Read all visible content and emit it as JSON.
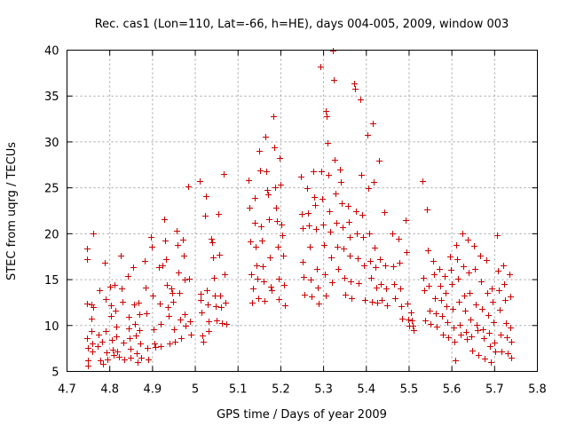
{
  "chart_data": {
    "type": "scatter",
    "title": "Rec. cas1 (Lon=110, Lat=-66, h=HE), days 004-005, 2009, window 003",
    "xlabel": "GPS time / Days of year 2009",
    "ylabel": "STEC from uqrg / TECUs",
    "xlim": [
      4.7,
      5.8
    ],
    "ylim": [
      5,
      40
    ],
    "xticks": [
      "4.7",
      "4.8",
      "4.9",
      "5",
      "5.1",
      "5.2",
      "5.3",
      "5.4",
      "5.5",
      "5.6",
      "5.7",
      "5.8"
    ],
    "yticks": [
      "5",
      "10",
      "15",
      "20",
      "25",
      "30",
      "35",
      "40"
    ],
    "grid": true,
    "marker": "plus",
    "color": "#cc0000",
    "points": [
      [
        4.746,
        18.4
      ],
      [
        4.746,
        17.2
      ],
      [
        4.747,
        12.4
      ],
      [
        4.747,
        8.6
      ],
      [
        4.748,
        7.6
      ],
      [
        4.748,
        6.2
      ],
      [
        4.748,
        5.6
      ],
      [
        4.757,
        12.3
      ],
      [
        4.758,
        10.8
      ],
      [
        4.758,
        9.4
      ],
      [
        4.759,
        8.0
      ],
      [
        4.759,
        7.2
      ],
      [
        4.761,
        20.0
      ],
      [
        4.762,
        12.0
      ],
      [
        4.772,
        7.8
      ],
      [
        4.774,
        9.0
      ],
      [
        4.776,
        13.8
      ],
      [
        4.778,
        6.2
      ],
      [
        4.781,
        8.2
      ],
      [
        4.784,
        5.8
      ],
      [
        4.789,
        16.8
      ],
      [
        4.79,
        12.9
      ],
      [
        4.791,
        9.4
      ],
      [
        4.792,
        7.1
      ],
      [
        4.794,
        6.3
      ],
      [
        4.8,
        14.2
      ],
      [
        4.802,
        12.2
      ],
      [
        4.803,
        11.0
      ],
      [
        4.804,
        8.4
      ],
      [
        4.806,
        7.4
      ],
      [
        4.808,
        6.8
      ],
      [
        4.812,
        14.4
      ],
      [
        4.814,
        11.6
      ],
      [
        4.815,
        9.9
      ],
      [
        4.816,
        8.8
      ],
      [
        4.818,
        7.2
      ],
      [
        4.821,
        6.6
      ],
      [
        4.826,
        17.6
      ],
      [
        4.828,
        14.0
      ],
      [
        4.83,
        12.6
      ],
      [
        4.832,
        8.1
      ],
      [
        4.834,
        6.3
      ],
      [
        4.842,
        15.4
      ],
      [
        4.844,
        10.9
      ],
      [
        4.845,
        9.7
      ],
      [
        4.846,
        8.6
      ],
      [
        4.848,
        7.5
      ],
      [
        4.849,
        6.5
      ],
      [
        4.854,
        16.4
      ],
      [
        4.856,
        12.3
      ],
      [
        4.858,
        10.2
      ],
      [
        4.86,
        8.9
      ],
      [
        4.862,
        7.0
      ],
      [
        4.864,
        6.0
      ],
      [
        4.867,
        12.5
      ],
      [
        4.869,
        11.2
      ],
      [
        4.87,
        9.5
      ],
      [
        4.872,
        8.0
      ],
      [
        4.874,
        6.5
      ],
      [
        4.882,
        17.0
      ],
      [
        4.884,
        14.1
      ],
      [
        4.886,
        11.3
      ],
      [
        4.888,
        7.6
      ],
      [
        4.89,
        6.3
      ],
      [
        4.896,
        19.6
      ],
      [
        4.898,
        18.6
      ],
      [
        4.9,
        13.3
      ],
      [
        4.902,
        9.6
      ],
      [
        4.904,
        8.0
      ],
      [
        4.906,
        7.7
      ],
      [
        4.914,
        16.4
      ],
      [
        4.916,
        12.4
      ],
      [
        4.918,
        10.2
      ],
      [
        4.92,
        7.8
      ],
      [
        4.923,
        16.6
      ],
      [
        4.928,
        21.6
      ],
      [
        4.93,
        19.3
      ],
      [
        4.932,
        17.2
      ],
      [
        4.934,
        14.4
      ],
      [
        4.936,
        12.0
      ],
      [
        4.938,
        11.0
      ],
      [
        4.94,
        8.0
      ],
      [
        4.944,
        14.0
      ],
      [
        4.946,
        13.6
      ],
      [
        4.948,
        12.6
      ],
      [
        4.95,
        9.6
      ],
      [
        4.952,
        8.2
      ],
      [
        4.956,
        20.3
      ],
      [
        4.958,
        18.8
      ],
      [
        4.96,
        15.8
      ],
      [
        4.962,
        13.6
      ],
      [
        4.964,
        10.7
      ],
      [
        4.966,
        8.6
      ],
      [
        4.97,
        19.4
      ],
      [
        4.972,
        17.6
      ],
      [
        4.974,
        15.0
      ],
      [
        4.976,
        11.2
      ],
      [
        4.978,
        10.0
      ],
      [
        4.984,
        25.2
      ],
      [
        4.986,
        15.1
      ],
      [
        4.988,
        10.5
      ],
      [
        4.99,
        9.0
      ],
      [
        5.01,
        25.7
      ],
      [
        5.012,
        13.5
      ],
      [
        5.013,
        12.8
      ],
      [
        5.014,
        11.4
      ],
      [
        5.016,
        8.9
      ],
      [
        5.018,
        8.2
      ],
      [
        5.022,
        22.0
      ],
      [
        5.024,
        24.1
      ],
      [
        5.026,
        13.8
      ],
      [
        5.028,
        12.3
      ],
      [
        5.03,
        10.5
      ],
      [
        5.032,
        9.4
      ],
      [
        5.038,
        19.5
      ],
      [
        5.04,
        19.1
      ],
      [
        5.042,
        17.4
      ],
      [
        5.044,
        15.2
      ],
      [
        5.046,
        13.3
      ],
      [
        5.048,
        12.1
      ],
      [
        5.05,
        10.6
      ],
      [
        5.054,
        22.2
      ],
      [
        5.056,
        17.7
      ],
      [
        5.058,
        13.3
      ],
      [
        5.06,
        12.0
      ],
      [
        5.062,
        10.3
      ],
      [
        5.066,
        26.5
      ],
      [
        5.068,
        15.6
      ],
      [
        5.07,
        12.5
      ],
      [
        5.072,
        10.2
      ],
      [
        5.124,
        25.8
      ],
      [
        5.126,
        22.8
      ],
      [
        5.128,
        19.2
      ],
      [
        5.13,
        15.6
      ],
      [
        5.132,
        12.5
      ],
      [
        5.134,
        14.0
      ],
      [
        5.138,
        23.9
      ],
      [
        5.14,
        21.2
      ],
      [
        5.142,
        18.6
      ],
      [
        5.144,
        16.6
      ],
      [
        5.146,
        15.1
      ],
      [
        5.148,
        13.0
      ],
      [
        5.15,
        29.0
      ],
      [
        5.152,
        26.9
      ],
      [
        5.154,
        20.8
      ],
      [
        5.156,
        19.3
      ],
      [
        5.158,
        16.5
      ],
      [
        5.16,
        14.8
      ],
      [
        5.162,
        12.7
      ],
      [
        5.164,
        30.6
      ],
      [
        5.166,
        26.8
      ],
      [
        5.168,
        24.8
      ],
      [
        5.17,
        24.3
      ],
      [
        5.172,
        21.6
      ],
      [
        5.174,
        17.4
      ],
      [
        5.176,
        14.2
      ],
      [
        5.178,
        13.8
      ],
      [
        5.182,
        32.8
      ],
      [
        5.184,
        29.4
      ],
      [
        5.186,
        25.1
      ],
      [
        5.188,
        22.8
      ],
      [
        5.19,
        21.4
      ],
      [
        5.192,
        18.6
      ],
      [
        5.194,
        15.1
      ],
      [
        5.196,
        12.9
      ],
      [
        5.198,
        28.3
      ],
      [
        5.2,
        25.4
      ],
      [
        5.202,
        21.0
      ],
      [
        5.204,
        19.8
      ],
      [
        5.206,
        17.6
      ],
      [
        5.208,
        14.4
      ],
      [
        5.21,
        12.2
      ],
      [
        5.246,
        26.2
      ],
      [
        5.248,
        22.2
      ],
      [
        5.25,
        20.6
      ],
      [
        5.252,
        16.9
      ],
      [
        5.254,
        15.3
      ],
      [
        5.256,
        13.4
      ],
      [
        5.262,
        25.0
      ],
      [
        5.264,
        22.3
      ],
      [
        5.266,
        20.9
      ],
      [
        5.268,
        18.6
      ],
      [
        5.27,
        15.0
      ],
      [
        5.272,
        13.2
      ],
      [
        5.276,
        26.8
      ],
      [
        5.278,
        24.0
      ],
      [
        5.28,
        23.1
      ],
      [
        5.282,
        20.5
      ],
      [
        5.284,
        16.2
      ],
      [
        5.286,
        14.1
      ],
      [
        5.288,
        12.4
      ],
      [
        5.292,
        38.2
      ],
      [
        5.294,
        26.8
      ],
      [
        5.296,
        23.8
      ],
      [
        5.298,
        21.0
      ],
      [
        5.3,
        18.8
      ],
      [
        5.302,
        15.6
      ],
      [
        5.304,
        13.3
      ],
      [
        5.306,
        33.4
      ],
      [
        5.308,
        32.8
      ],
      [
        5.31,
        29.9
      ],
      [
        5.312,
        26.4
      ],
      [
        5.314,
        22.5
      ],
      [
        5.316,
        20.2
      ],
      [
        5.318,
        17.4
      ],
      [
        5.32,
        14.7
      ],
      [
        5.322,
        40.0
      ],
      [
        5.324,
        36.8
      ],
      [
        5.326,
        28.1
      ],
      [
        5.328,
        24.4
      ],
      [
        5.33,
        21.2
      ],
      [
        5.332,
        18.6
      ],
      [
        5.334,
        16.2
      ],
      [
        5.338,
        27.0
      ],
      [
        5.34,
        25.6
      ],
      [
        5.342,
        23.3
      ],
      [
        5.344,
        20.7
      ],
      [
        5.346,
        18.4
      ],
      [
        5.348,
        15.2
      ],
      [
        5.35,
        13.4
      ],
      [
        5.356,
        23.0
      ],
      [
        5.358,
        21.3
      ],
      [
        5.36,
        19.6
      ],
      [
        5.362,
        17.6
      ],
      [
        5.364,
        14.8
      ],
      [
        5.366,
        13.0
      ],
      [
        5.372,
        36.4
      ],
      [
        5.374,
        35.8
      ],
      [
        5.376,
        22.5
      ],
      [
        5.378,
        20.0
      ],
      [
        5.38,
        17.3
      ],
      [
        5.382,
        14.6
      ],
      [
        5.386,
        34.6
      ],
      [
        5.388,
        26.4
      ],
      [
        5.39,
        22.1
      ],
      [
        5.392,
        19.6
      ],
      [
        5.394,
        16.6
      ],
      [
        5.396,
        12.8
      ],
      [
        5.402,
        30.8
      ],
      [
        5.404,
        25.0
      ],
      [
        5.406,
        20.0
      ],
      [
        5.408,
        17.0
      ],
      [
        5.41,
        15.2
      ],
      [
        5.412,
        12.6
      ],
      [
        5.416,
        32.0
      ],
      [
        5.418,
        25.6
      ],
      [
        5.42,
        18.5
      ],
      [
        5.422,
        16.4
      ],
      [
        5.424,
        14.1
      ],
      [
        5.426,
        12.5
      ],
      [
        5.43,
        28.0
      ],
      [
        5.432,
        17.2
      ],
      [
        5.434,
        14.5
      ],
      [
        5.436,
        12.8
      ],
      [
        5.442,
        22.4
      ],
      [
        5.444,
        16.6
      ],
      [
        5.446,
        14.0
      ],
      [
        5.448,
        12.2
      ],
      [
        5.46,
        20.0
      ],
      [
        5.462,
        16.5
      ],
      [
        5.464,
        14.5
      ],
      [
        5.466,
        13.0
      ],
      [
        5.476,
        19.5
      ],
      [
        5.478,
        16.8
      ],
      [
        5.48,
        14.0
      ],
      [
        5.482,
        12.1
      ],
      [
        5.484,
        10.8
      ],
      [
        5.492,
        21.5
      ],
      [
        5.494,
        18.0
      ],
      [
        5.496,
        12.4
      ],
      [
        5.498,
        10.7
      ],
      [
        5.5,
        10.0
      ],
      [
        5.504,
        11.4
      ],
      [
        5.506,
        10.6
      ],
      [
        5.508,
        10.0
      ],
      [
        5.51,
        9.5
      ],
      [
        5.532,
        25.7
      ],
      [
        5.534,
        15.2
      ],
      [
        5.536,
        13.8
      ],
      [
        5.538,
        10.6
      ],
      [
        5.542,
        22.6
      ],
      [
        5.544,
        18.2
      ],
      [
        5.546,
        14.3
      ],
      [
        5.548,
        11.6
      ],
      [
        5.55,
        10.2
      ],
      [
        5.556,
        17.0
      ],
      [
        5.558,
        15.6
      ],
      [
        5.56,
        13.0
      ],
      [
        5.562,
        11.3
      ],
      [
        5.564,
        9.9
      ],
      [
        5.57,
        16.2
      ],
      [
        5.572,
        14.3
      ],
      [
        5.574,
        12.8
      ],
      [
        5.576,
        11.0
      ],
      [
        5.578,
        9.0
      ],
      [
        5.584,
        15.4
      ],
      [
        5.586,
        13.6
      ],
      [
        5.588,
        12.1
      ],
      [
        5.59,
        10.4
      ],
      [
        5.592,
        8.7
      ],
      [
        5.596,
        17.5
      ],
      [
        5.598,
        16.1
      ],
      [
        5.6,
        14.5
      ],
      [
        5.602,
        11.8
      ],
      [
        5.604,
        9.8
      ],
      [
        5.606,
        8.2
      ],
      [
        5.608,
        6.2
      ],
      [
        5.61,
        18.8
      ],
      [
        5.612,
        17.2
      ],
      [
        5.614,
        15.1
      ],
      [
        5.616,
        12.6
      ],
      [
        5.618,
        10.1
      ],
      [
        5.62,
        9.0
      ],
      [
        5.624,
        20.0
      ],
      [
        5.626,
        16.5
      ],
      [
        5.628,
        13.3
      ],
      [
        5.63,
        11.6
      ],
      [
        5.632,
        9.3
      ],
      [
        5.634,
        8.5
      ],
      [
        5.638,
        19.4
      ],
      [
        5.64,
        15.8
      ],
      [
        5.642,
        13.6
      ],
      [
        5.644,
        10.7
      ],
      [
        5.646,
        8.8
      ],
      [
        5.648,
        7.3
      ],
      [
        5.652,
        18.7
      ],
      [
        5.654,
        16.2
      ],
      [
        5.656,
        12.3
      ],
      [
        5.658,
        10.1
      ],
      [
        5.66,
        9.5
      ],
      [
        5.662,
        6.8
      ],
      [
        5.666,
        17.6
      ],
      [
        5.668,
        14.8
      ],
      [
        5.67,
        11.8
      ],
      [
        5.672,
        9.6
      ],
      [
        5.674,
        8.6
      ],
      [
        5.676,
        6.4
      ],
      [
        5.68,
        17.1
      ],
      [
        5.682,
        13.6
      ],
      [
        5.684,
        11.1
      ],
      [
        5.686,
        9.2
      ],
      [
        5.688,
        7.8
      ],
      [
        5.69,
        6.0
      ],
      [
        5.694,
        14.0
      ],
      [
        5.696,
        12.6
      ],
      [
        5.698,
        10.4
      ],
      [
        5.7,
        8.1
      ],
      [
        5.702,
        7.2
      ],
      [
        5.706,
        19.8
      ],
      [
        5.708,
        16.0
      ],
      [
        5.71,
        13.8
      ],
      [
        5.712,
        11.7
      ],
      [
        5.714,
        9.0
      ],
      [
        5.716,
        7.2
      ],
      [
        5.72,
        16.6
      ],
      [
        5.722,
        14.5
      ],
      [
        5.724,
        12.8
      ],
      [
        5.726,
        10.3
      ],
      [
        5.728,
        8.7
      ],
      [
        5.73,
        7.0
      ],
      [
        5.734,
        15.6
      ],
      [
        5.736,
        13.2
      ],
      [
        5.737,
        9.8
      ],
      [
        5.738,
        8.2
      ],
      [
        5.739,
        6.5
      ]
    ]
  }
}
